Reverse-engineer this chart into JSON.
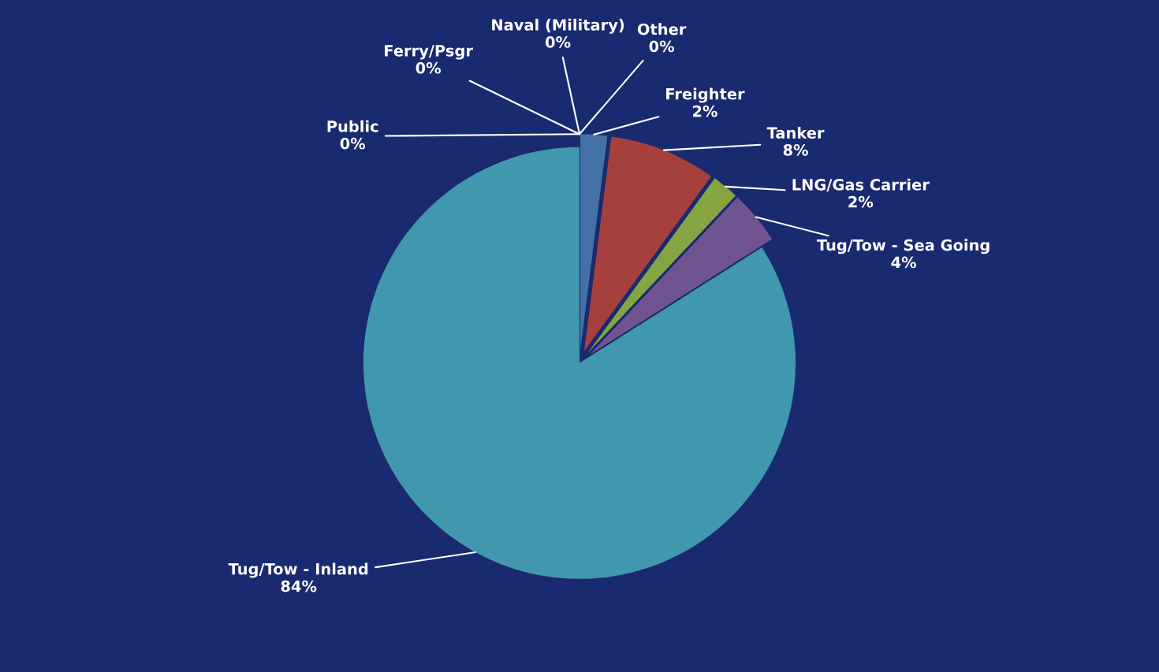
{
  "chart_data": {
    "type": "pie",
    "categories": [
      "Public",
      "Ferry/Psgr",
      "Naval (Military)",
      "Other",
      "Freighter",
      "Tanker",
      "LNG/Gas Carrier",
      "Tug/Tow - Sea Going",
      "Tug/Tow - Inland"
    ],
    "values": [
      0,
      0,
      0,
      0,
      2,
      8,
      2,
      4,
      84
    ],
    "value_labels": [
      "0%",
      "0%",
      "0%",
      "0%",
      "2%",
      "8%",
      "2%",
      "4%",
      "84%"
    ],
    "colors": [
      "#8a4a22",
      "#2c4d75",
      "#b0a070",
      "#d7e4bd",
      "#4472a8",
      "#a5403d",
      "#86a542",
      "#6f548f",
      "#4197ae"
    ],
    "legend": false
  }
}
